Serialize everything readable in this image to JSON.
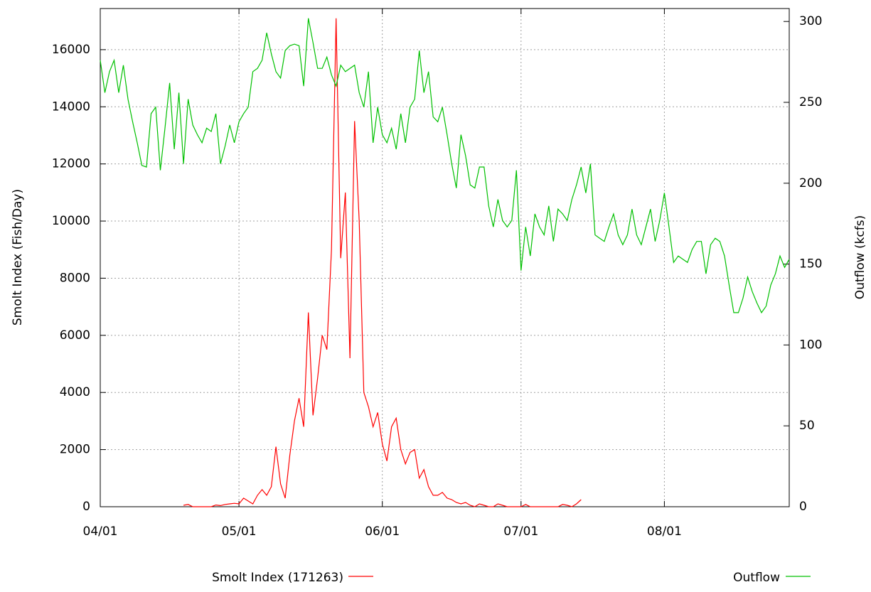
{
  "chart_data": {
    "type": "line",
    "ylabel": "Smolt Index (Fish/Day)",
    "y2label": "Outflow (kcfs)",
    "xlim": [
      0,
      149
    ],
    "xticks": [
      {
        "value": 0,
        "label": "04/01"
      },
      {
        "value": 30,
        "label": "05/01"
      },
      {
        "value": 61,
        "label": "06/01"
      },
      {
        "value": 91,
        "label": "07/01"
      },
      {
        "value": 122,
        "label": "08/01"
      }
    ],
    "ylim": [
      0,
      17440
    ],
    "yticks": [
      0,
      2000,
      4000,
      6000,
      8000,
      10000,
      12000,
      14000,
      16000
    ],
    "y2lim": [
      0,
      308
    ],
    "y2ticks": [
      0,
      50,
      100,
      150,
      200,
      250,
      300
    ],
    "grid": true,
    "legend": "bottom",
    "series": [
      {
        "name": "Smolt Index (171263)",
        "color": "#ff0000",
        "x": [
          18,
          19,
          20,
          21,
          22,
          23,
          24,
          25,
          26,
          27,
          28,
          29,
          30,
          31,
          32,
          33,
          34,
          35,
          36,
          37,
          38,
          39,
          40,
          41,
          42,
          43,
          44,
          45,
          46,
          47,
          48,
          49,
          50,
          51,
          52,
          53,
          54,
          55,
          56,
          57,
          58,
          59,
          60,
          61,
          62,
          63,
          64,
          65,
          66,
          67,
          68,
          69,
          70,
          71,
          72,
          73,
          74,
          75,
          76,
          77,
          78,
          79,
          80,
          81,
          82,
          83,
          84,
          85,
          86,
          87,
          88,
          89,
          90,
          91,
          92,
          93,
          94,
          95,
          96,
          97,
          98,
          99,
          100,
          101,
          102,
          103,
          104
        ],
        "values": [
          50,
          80,
          0,
          0,
          0,
          0,
          0,
          60,
          40,
          80,
          100,
          120,
          100,
          300,
          200,
          100,
          400,
          600,
          400,
          700,
          2100,
          800,
          300,
          1800,
          3000,
          3800,
          2800,
          6800,
          3200,
          4500,
          6000,
          5500,
          9000,
          17100,
          8700,
          11000,
          5200,
          13500,
          10000,
          4000,
          3500,
          2800,
          3300,
          2200,
          1600,
          2800,
          3100,
          2000,
          1500,
          1900,
          2000,
          1000,
          1300,
          700,
          400,
          400,
          500,
          300,
          250,
          150,
          100,
          150,
          50,
          0,
          100,
          50,
          0,
          0,
          100,
          50,
          0,
          0,
          0,
          0,
          80,
          0,
          0,
          0,
          0,
          0,
          0,
          0,
          80,
          50,
          0,
          100,
          250
        ]
      },
      {
        "name": "Outflow",
        "color": "#00c000",
        "axis": "y2",
        "x": [
          0,
          1,
          2,
          3,
          4,
          5,
          6,
          7,
          8,
          9,
          10,
          11,
          12,
          13,
          14,
          15,
          16,
          17,
          18,
          19,
          20,
          21,
          22,
          23,
          24,
          25,
          26,
          27,
          28,
          29,
          30,
          31,
          32,
          33,
          34,
          35,
          36,
          37,
          38,
          39,
          40,
          41,
          42,
          43,
          44,
          45,
          46,
          47,
          48,
          49,
          50,
          51,
          52,
          53,
          54,
          55,
          56,
          57,
          58,
          59,
          60,
          61,
          62,
          63,
          64,
          65,
          66,
          67,
          68,
          69,
          70,
          71,
          72,
          73,
          74,
          75,
          76,
          77,
          78,
          79,
          80,
          81,
          82,
          83,
          84,
          85,
          86,
          87,
          88,
          89,
          90,
          91,
          92,
          93,
          94,
          95,
          96,
          97,
          98,
          99,
          100,
          101,
          102,
          103,
          104,
          105,
          106,
          107,
          108,
          109,
          110,
          111,
          112,
          113,
          114,
          115,
          116,
          117,
          118,
          119,
          120,
          121,
          122,
          123,
          124,
          125,
          126,
          127,
          128,
          129,
          130,
          131,
          132,
          133,
          134,
          135,
          136,
          137,
          138,
          139,
          140,
          141,
          142,
          143,
          144,
          145,
          146,
          147,
          148,
          149
        ],
        "values": [
          276,
          256,
          269,
          276,
          256,
          273,
          252,
          238,
          225,
          211,
          210,
          243,
          247,
          208,
          234,
          262,
          221,
          256,
          212,
          252,
          236,
          230,
          225,
          234,
          232,
          243,
          212,
          223,
          236,
          225,
          238,
          243,
          247,
          269,
          271,
          276,
          293,
          280,
          269,
          265,
          282,
          285,
          286,
          285,
          260,
          302,
          287,
          271,
          271,
          278,
          267,
          260,
          273,
          269,
          271,
          273,
          256,
          247,
          269,
          225,
          247,
          230,
          225,
          234,
          221,
          243,
          225,
          247,
          252,
          282,
          256,
          269,
          241,
          238,
          247,
          230,
          212,
          197,
          230,
          217,
          199,
          197,
          210,
          210,
          186,
          173,
          190,
          177,
          173,
          177,
          208,
          146,
          173,
          155,
          181,
          173,
          168,
          186,
          164,
          184,
          181,
          177,
          190,
          199,
          210,
          194,
          212,
          168,
          166,
          164,
          173,
          181,
          168,
          162,
          168,
          184,
          168,
          162,
          173,
          184,
          164,
          177,
          194,
          173,
          151,
          155,
          153,
          151,
          159,
          164,
          164,
          144,
          162,
          166,
          164,
          155,
          137,
          120,
          120,
          129,
          142,
          133,
          126,
          120,
          124,
          137,
          144,
          155,
          148,
          153
        ]
      }
    ]
  }
}
